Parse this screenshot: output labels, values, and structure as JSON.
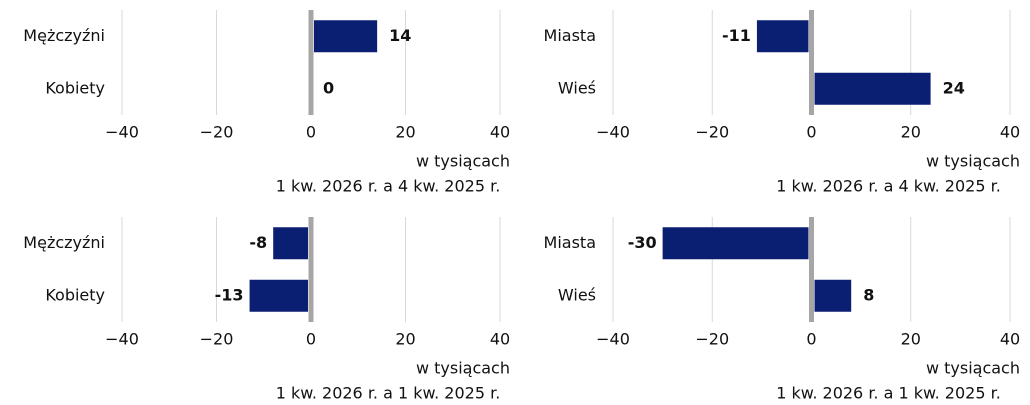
{
  "chart_data": [
    {
      "type": "barh",
      "categories": [
        "Mężczyźni",
        "Kobiety"
      ],
      "values": [
        14,
        0
      ],
      "color": "#0b1f72",
      "xlim": [
        -40,
        40
      ],
      "xticks": [
        {
          "value": -40,
          "label": "−40"
        },
        {
          "value": -20,
          "label": "−20"
        },
        0,
        20,
        40
      ],
      "xlabel": "w tysiącach",
      "title": "1 kw. 2026 r. a 4 kw. 2025 r.",
      "grid": true
    },
    {
      "type": "barh",
      "categories": [
        "Miasta",
        "Wieś"
      ],
      "values": [
        -11,
        24
      ],
      "color": "#0b1f72",
      "xlim": [
        -40,
        40
      ],
      "xticks": [
        {
          "value": -40,
          "label": "−40"
        },
        {
          "value": -20,
          "label": "−20"
        },
        0,
        20,
        40
      ],
      "xlabel": "w tysiącach",
      "title": "1 kw. 2026 r. a 4 kw. 2025 r.",
      "grid": true
    },
    {
      "type": "barh",
      "categories": [
        "Mężczyźni",
        "Kobiety"
      ],
      "values": [
        -8,
        -13
      ],
      "color": "#0b1f72",
      "xlim": [
        -40,
        40
      ],
      "xticks": [
        {
          "value": -40,
          "label": "−40"
        },
        {
          "value": -20,
          "label": "−20"
        },
        0,
        20,
        40
      ],
      "xlabel": "w tysiącach",
      "title": "1 kw. 2026 r. a 1 kw. 2025 r.",
      "grid": true
    },
    {
      "type": "barh",
      "categories": [
        "Miasta",
        "Wieś"
      ],
      "values": [
        -30,
        8
      ],
      "color": "#0b1f72",
      "xlim": [
        -40,
        40
      ],
      "xticks": [
        {
          "value": -40,
          "label": "−40"
        },
        {
          "value": -20,
          "label": "−20"
        },
        0,
        20,
        40
      ],
      "xlabel": "w tysiącach",
      "title": "1 kw. 2026 r. a 1 kw. 2025 r.",
      "grid": true
    }
  ]
}
